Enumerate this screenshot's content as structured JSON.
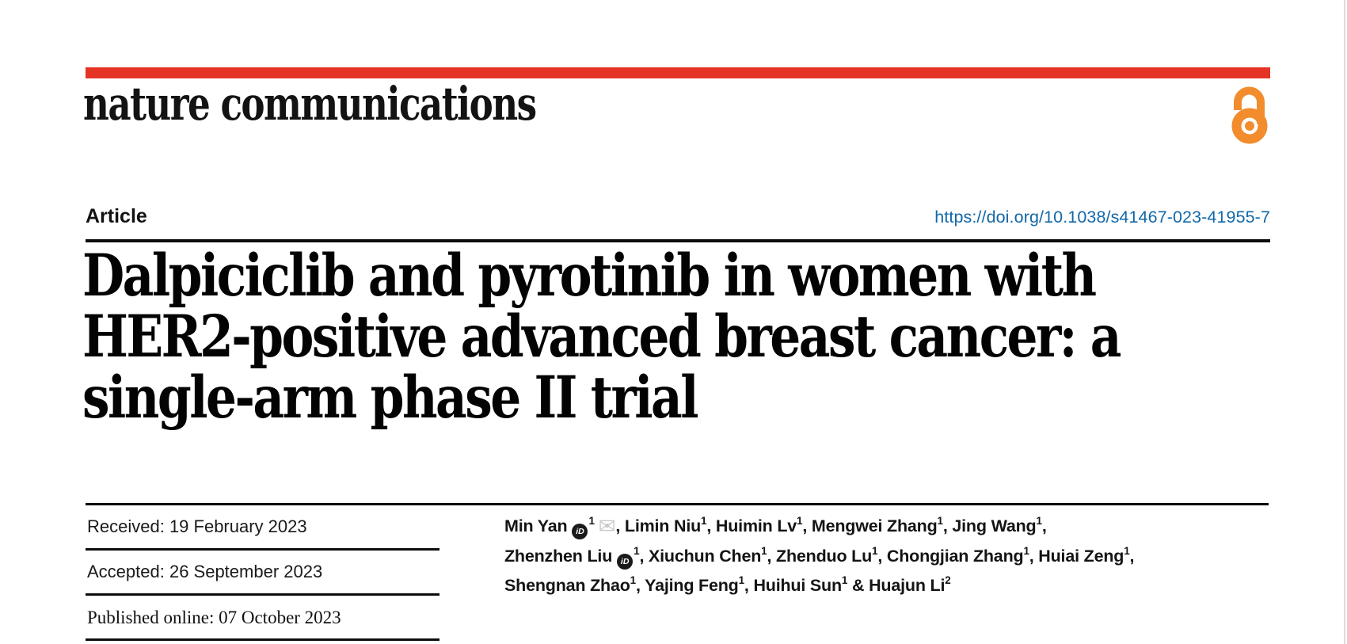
{
  "journal": {
    "name": "nature communications"
  },
  "article": {
    "type_label": "Article",
    "doi": "https://doi.org/10.1038/s41467-023-41955-7",
    "title_lines": [
      "Dalpiciclib and pyrotinib in women with",
      "HER2-positive advanced breast cancer: a",
      "single-arm phase II trial"
    ]
  },
  "dates": {
    "received": "Received: 19 February 2023",
    "accepted": "Accepted: 26 September 2023",
    "published_online": "Published online: 07 October 2023"
  },
  "authors": {
    "lines": [
      [
        {
          "name": "Min Yan",
          "orcid": true,
          "sup": "1",
          "email": true,
          "tail": ", "
        },
        {
          "name": "Limin Niu",
          "sup": "1",
          "tail": ", "
        },
        {
          "name": "Huimin Lv",
          "sup": "1",
          "tail": ", "
        },
        {
          "name": "Mengwei Zhang",
          "sup": "1",
          "tail": ", "
        },
        {
          "name": "Jing Wang",
          "sup": "1",
          "tail": ","
        }
      ],
      [
        {
          "name": "Zhenzhen Liu",
          "orcid": true,
          "sup": "1",
          "tail": ", "
        },
        {
          "name": "Xiuchun Chen",
          "sup": "1",
          "tail": ", "
        },
        {
          "name": "Zhenduo Lu",
          "sup": "1",
          "tail": ", "
        },
        {
          "name": "Chongjian Zhang",
          "sup": "1",
          "tail": ", "
        },
        {
          "name": "Huiai Zeng",
          "sup": "1",
          "tail": ","
        }
      ],
      [
        {
          "name": "Shengnan Zhao",
          "sup": "1",
          "tail": ", "
        },
        {
          "name": "Yajing Feng",
          "sup": "1",
          "tail": ", "
        },
        {
          "name": "Huihui Sun",
          "sup": "1",
          "tail": " & "
        },
        {
          "name": "Huajun Li",
          "sup": "2",
          "tail": ""
        }
      ]
    ]
  },
  "icons": {
    "orcid_label": "iD",
    "envelope_glyph": "✉",
    "open_access": "open-padlock"
  },
  "colors": {
    "accent_red": "#e53426",
    "open_access_orange": "#f28c2d",
    "link_blue": "#1268a9"
  }
}
